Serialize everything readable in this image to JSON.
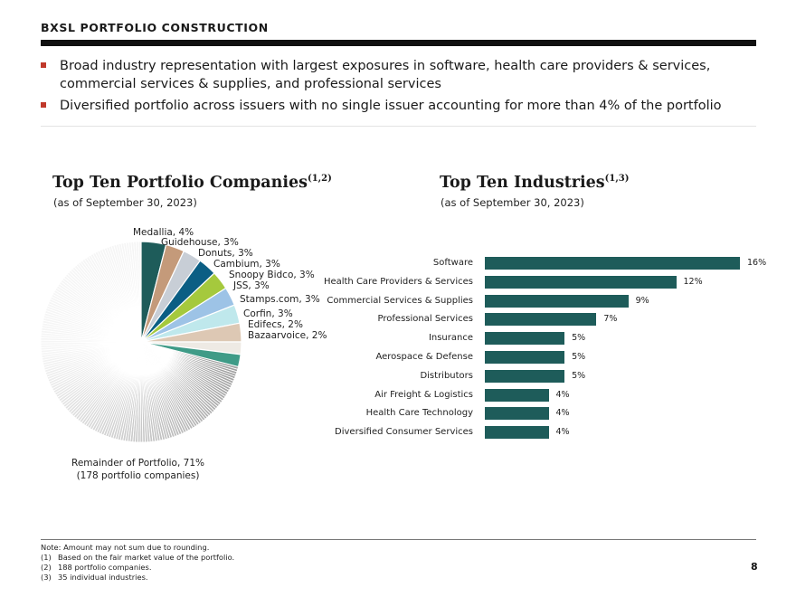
{
  "header": {
    "title": "BXSL PORTFOLIO CONSTRUCTION"
  },
  "bullets": [
    "Broad industry representation with largest exposures in software, health care providers & services, commercial services & supplies, and professional services",
    "Diversified portfolio across issuers with no single issuer accounting for more than 4% of the portfolio"
  ],
  "companies_section": {
    "title": "Top Ten Portfolio Companies",
    "footnote_ref": "(1,2)",
    "subtitle": "(as of September 30, 2023)"
  },
  "industries_section": {
    "title": "Top Ten Industries",
    "footnote_ref": "(1,3)",
    "subtitle": "(as of September 30, 2023)"
  },
  "chart_data": [
    {
      "type": "pie",
      "slices": [
        {
          "label": "Medallia, 4%",
          "name": "Medallia",
          "value": 4,
          "color": "#1e5c5a"
        },
        {
          "label": "Guidehouse, 3%",
          "name": "Guidehouse",
          "value": 3,
          "color": "#c49a7a"
        },
        {
          "label": "Donuts, 3%",
          "name": "Donuts",
          "value": 3,
          "color": "#c8ced6"
        },
        {
          "label": "Cambium, 3%",
          "name": "Cambium",
          "value": 3,
          "color": "#0b5e84"
        },
        {
          "label": "Snoopy Bidco, 3%",
          "name": "Snoopy Bidco",
          "value": 3,
          "color": "#a5c93d"
        },
        {
          "label": "JSS, 3%",
          "name": "JSS",
          "value": 3,
          "color": "#9dc3e6"
        },
        {
          "label": "Stamps.com, 3%",
          "name": "Stamps.com",
          "value": 3,
          "color": "#bfe8ec"
        },
        {
          "label": "Corfin, 3%",
          "name": "Corfin",
          "value": 3,
          "color": "#ddc8b4"
        },
        {
          "label": "Edifecs, 2%",
          "name": "Edifecs",
          "value": 2,
          "color": "#eeeae4"
        },
        {
          "label": "Bazaarvoice, 2%",
          "name": "Bazaarvoice",
          "value": 2,
          "color": "#3f9b87"
        },
        {
          "label": "Remainder of Portfolio, 71%",
          "name": "Remainder of Portfolio",
          "value": 71,
          "note": "(178 portfolio companies)",
          "color": "#d9d9d9"
        }
      ]
    },
    {
      "type": "bar",
      "orientation": "horizontal",
      "categories": [
        "Software",
        "Health Care Providers & Services",
        "Commercial Services & Supplies",
        "Professional Services",
        "Insurance",
        "Aerospace & Defense",
        "Distributors",
        "Air Freight & Logistics",
        "Health Care Technology",
        "Diversified Consumer Services"
      ],
      "values": [
        16,
        12,
        9,
        7,
        5,
        5,
        5,
        4,
        4,
        4
      ],
      "value_labels": [
        "16%",
        "12%",
        "9%",
        "7%",
        "5%",
        "5%",
        "5%",
        "4%",
        "4%",
        "4%"
      ],
      "bar_color": "#1e5c5a"
    }
  ],
  "footer": {
    "notes": [
      {
        "num": "",
        "text": "Note: Amount may not sum due to rounding."
      },
      {
        "num": "(1)",
        "text": "Based on the fair market value of the portfolio."
      },
      {
        "num": "(2)",
        "text": "188 portfolio companies."
      },
      {
        "num": "(3)",
        "text": "35 individual industries."
      }
    ],
    "page_number": "8"
  }
}
